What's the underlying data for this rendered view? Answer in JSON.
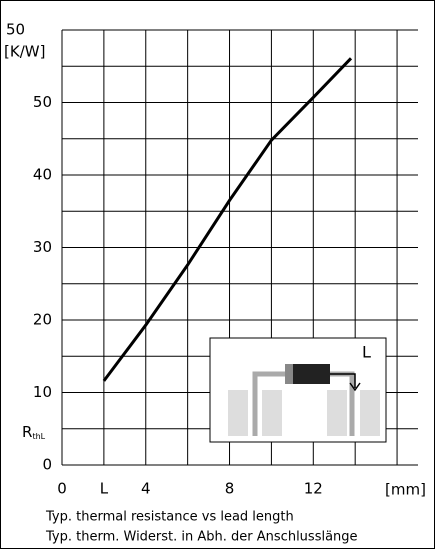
{
  "chart_data": {
    "type": "line",
    "y_top_label": "50",
    "y_unit": "[K/W]",
    "y_label": {
      "main": "R",
      "sub": "thL"
    },
    "x_unit": "[mm]",
    "captions": [
      "Typ. thermal resistance vs lead length",
      "Typ. therm. Widerst. in Abh. der Anschlusslänge"
    ],
    "x": [
      2,
      4,
      6,
      8,
      10,
      12,
      13.8
    ],
    "values": [
      11.6,
      19.3,
      27.6,
      36.5,
      44.8,
      50.7,
      56.1
    ],
    "color": "#000000",
    "xlim": [
      0,
      17
    ],
    "xticks": [
      0,
      {
        "value": 2,
        "label": "L"
      },
      4,
      8,
      12
    ],
    "xminor": [
      6,
      10,
      14,
      16
    ],
    "ylim": [
      0,
      60
    ],
    "yticks": [
      0,
      10,
      20,
      30,
      40,
      50
    ],
    "yminor": [
      5,
      15,
      25,
      35,
      45,
      55,
      60
    ],
    "grid": true,
    "inset": {
      "label": "L"
    }
  }
}
